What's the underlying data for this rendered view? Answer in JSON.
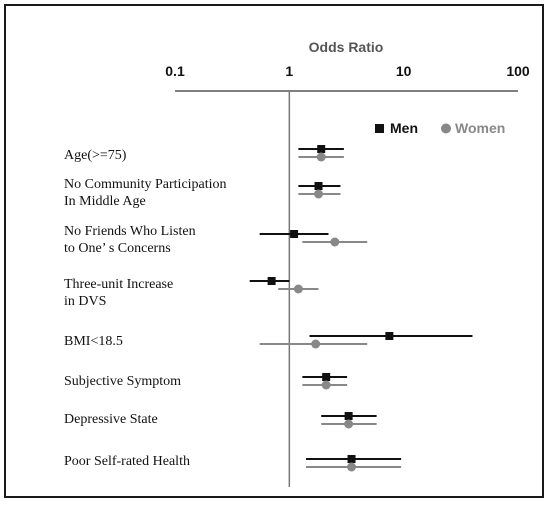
{
  "chart_data": {
    "type": "scatter",
    "subtype": "forest-plot",
    "title": "Odds Ratio",
    "x_scale": "log",
    "xlim": [
      0.1,
      100
    ],
    "x_ticks": [
      "0.1",
      "1",
      "10",
      "100"
    ],
    "x_tick_values": [
      0.1,
      1,
      10,
      100
    ],
    "reference_line": 1,
    "legend": {
      "position": "top-right",
      "entries": [
        "Men",
        "Women"
      ]
    },
    "colors": {
      "Men": "#111111",
      "Women": "#888888"
    },
    "categories": [
      [
        "Age(>=75)"
      ],
      [
        "No Community Participation",
        "In Middle Age"
      ],
      [
        "No Friends Who Listen",
        "to One’ s Concerns"
      ],
      [
        "Three-unit Increase",
        "in DVS"
      ],
      [
        "BMI<18.5"
      ],
      [
        "Subjective Symptom"
      ],
      [
        "Depressive State"
      ],
      [
        "Poor Self-rated Health"
      ]
    ],
    "series": [
      {
        "name": "Men",
        "marker": "square",
        "or": [
          1.9,
          1.8,
          1.1,
          0.7,
          7.5,
          2.1,
          3.3,
          3.5
        ],
        "lower": [
          1.2,
          1.2,
          0.55,
          0.45,
          1.5,
          1.3,
          1.9,
          1.4
        ],
        "upper": [
          3.0,
          2.8,
          2.2,
          1.0,
          40.0,
          3.2,
          5.8,
          9.5
        ]
      },
      {
        "name": "Women",
        "marker": "circle",
        "or": [
          1.9,
          1.8,
          2.5,
          1.2,
          1.7,
          2.1,
          3.3,
          3.5
        ],
        "lower": [
          1.2,
          1.2,
          1.3,
          0.8,
          0.55,
          1.3,
          1.9,
          1.4
        ],
        "upper": [
          3.0,
          2.8,
          4.8,
          1.8,
          4.8,
          3.2,
          5.8,
          9.5
        ]
      }
    ]
  }
}
